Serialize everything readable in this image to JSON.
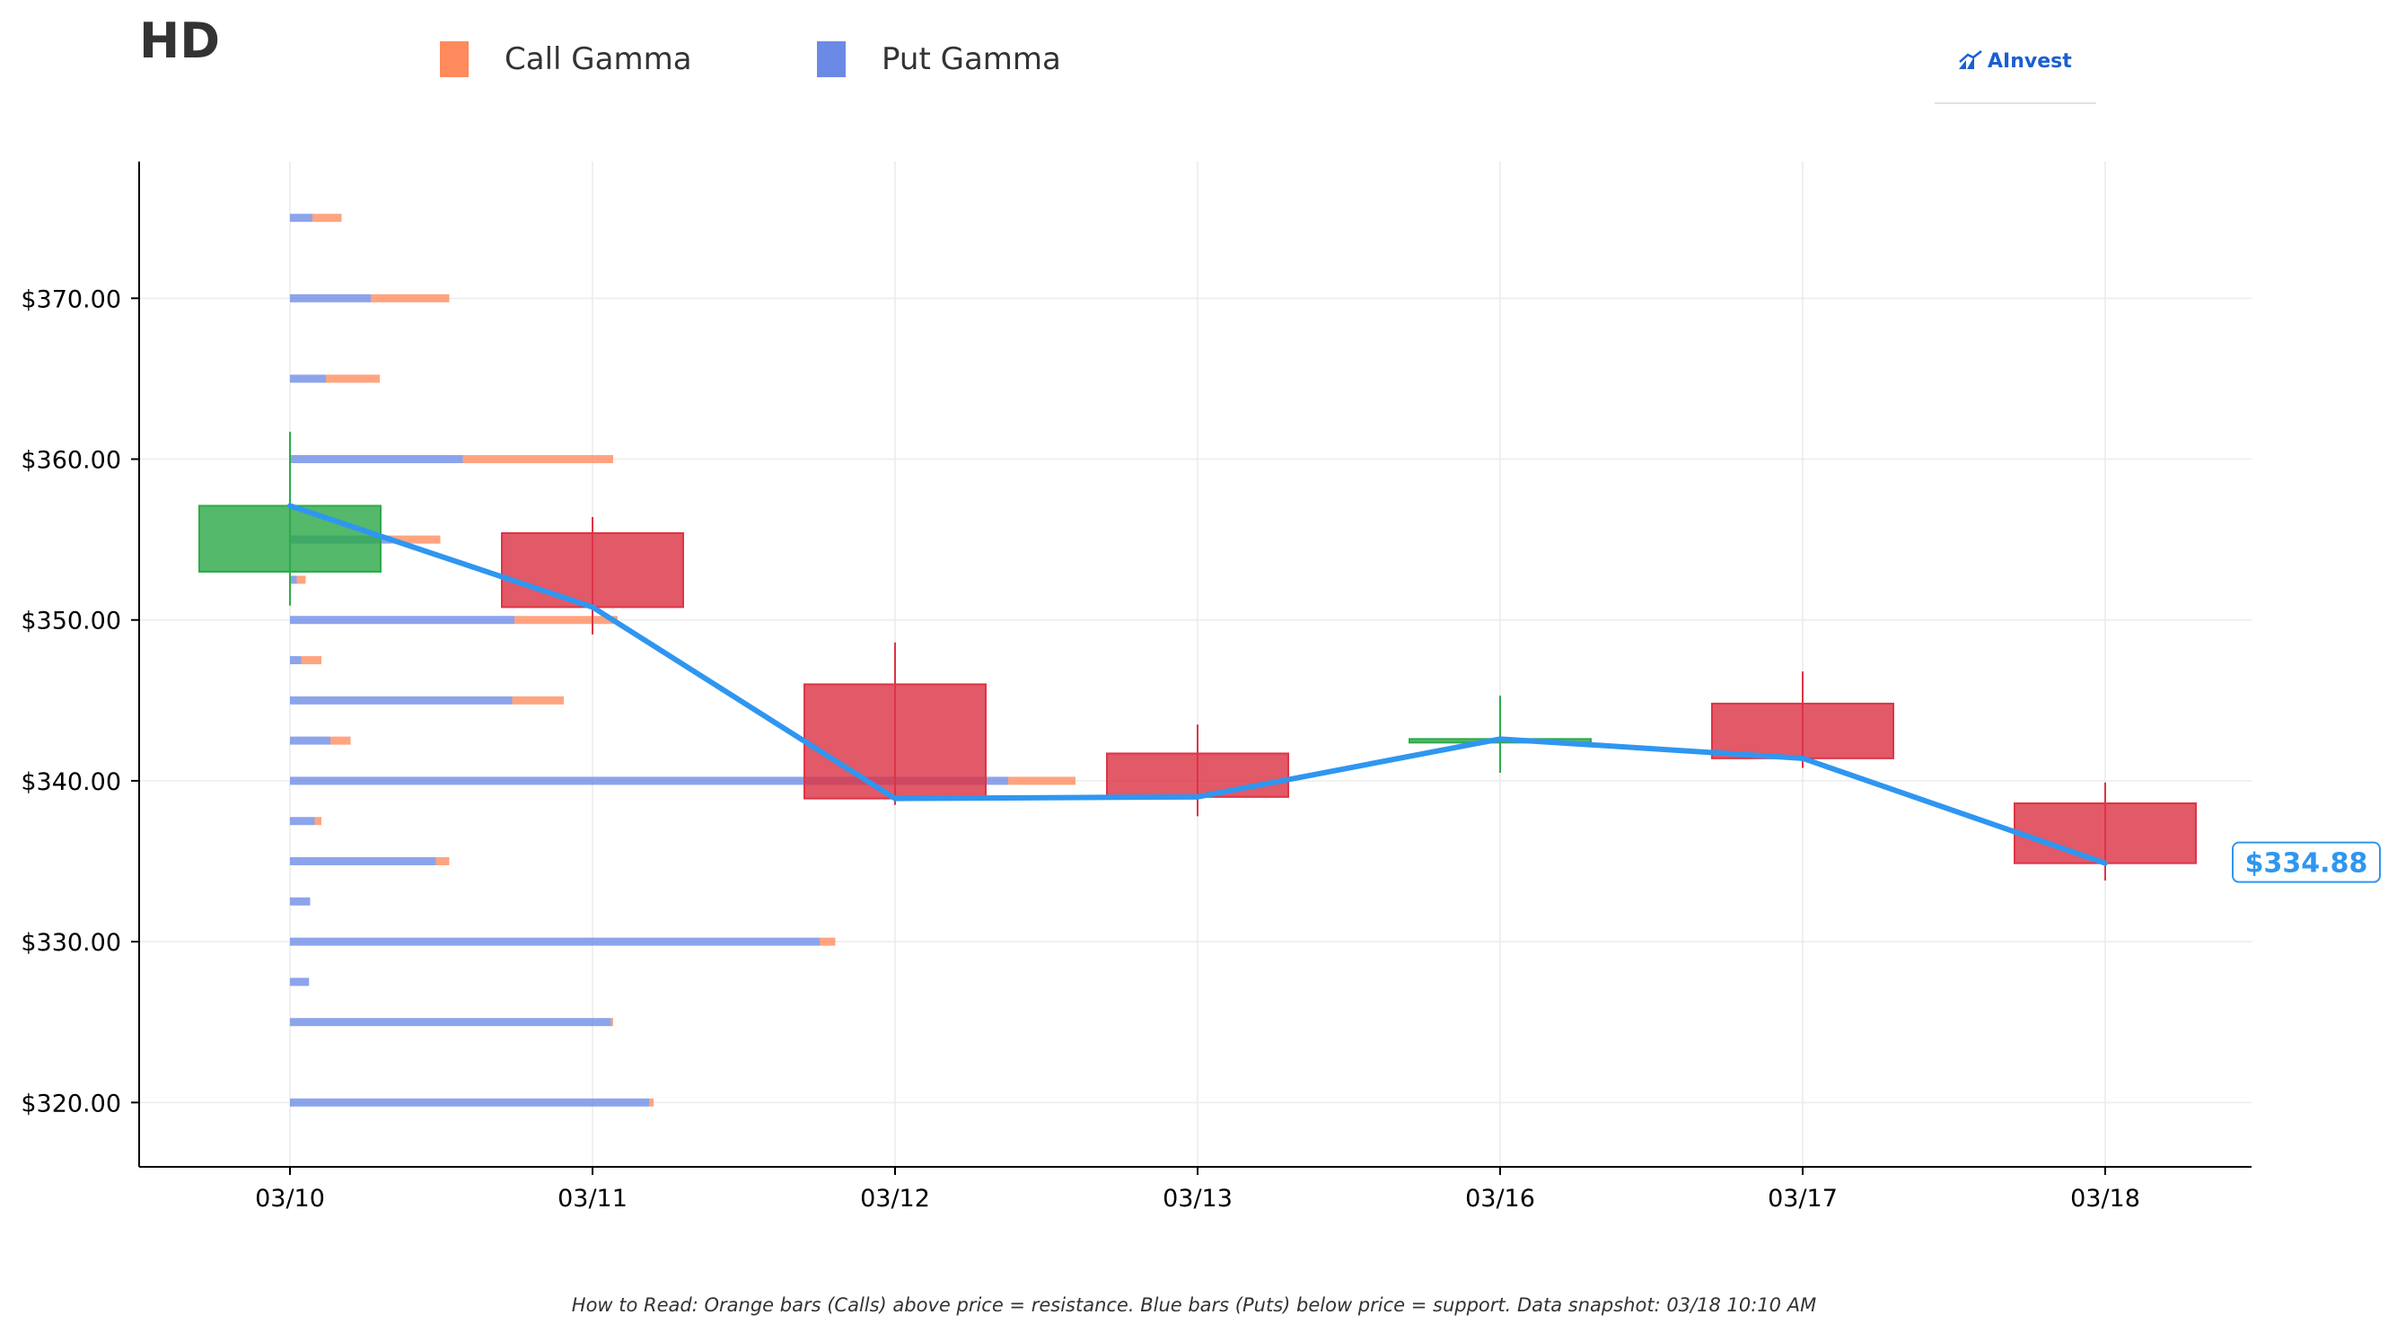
{
  "header": {
    "ticker": "HD",
    "logo_text": "AInvest"
  },
  "legend": [
    {
      "label": "Call Gamma",
      "color": "#ff8a5c"
    },
    {
      "label": "Put Gamma",
      "color": "#6b8ae6"
    }
  ],
  "footnote": "How to Read: Orange bars (Calls) above price = resistance. Blue bars (Puts) below price = support. Data snapshot: 03/18 10:10 AM",
  "colors": {
    "call": "#ff8a5c",
    "put": "#6b8ae6",
    "up": "#2eaa4a",
    "down": "#dc3545",
    "price_line": "#2f96f0",
    "axis": "#000000",
    "grid": "#ececec"
  },
  "chart_data": {
    "type": "candlestick",
    "categories": [
      "03/10",
      "03/11",
      "03/12",
      "03/13",
      "03/16",
      "03/17",
      "03/18"
    ],
    "ylim": [
      316,
      378.5
    ],
    "yticks": [
      320,
      330,
      340,
      350,
      360,
      370
    ],
    "ytick_labels": [
      "$320.00",
      "$330.00",
      "$340.00",
      "$350.00",
      "$360.00",
      "$370.00"
    ],
    "grid": true,
    "legend_position": "top",
    "last_price_label": "$334.88",
    "candles": [
      {
        "date": "03/10",
        "open": 353.0,
        "high": 361.7,
        "low": 350.9,
        "close": 357.1
      },
      {
        "date": "03/11",
        "open": 355.4,
        "high": 356.4,
        "low": 349.1,
        "close": 350.8
      },
      {
        "date": "03/12",
        "open": 346.0,
        "high": 348.6,
        "low": 338.5,
        "close": 338.9
      },
      {
        "date": "03/13",
        "open": 341.7,
        "high": 343.5,
        "low": 337.8,
        "close": 339.0
      },
      {
        "date": "03/16",
        "open": 342.4,
        "high": 345.3,
        "low": 340.5,
        "close": 342.6
      },
      {
        "date": "03/17",
        "open": 344.8,
        "high": 346.8,
        "low": 340.8,
        "close": 341.4
      },
      {
        "date": "03/18",
        "open": 338.6,
        "high": 339.9,
        "low": 333.8,
        "close": 334.88
      }
    ],
    "price_line": {
      "name": "Price",
      "values": [
        357.1,
        350.8,
        338.9,
        339.0,
        342.6,
        341.4,
        334.88
      ]
    },
    "gamma_bars": [
      {
        "strike": 375.0,
        "put": 1.0,
        "call": 1.3
      },
      {
        "strike": 370.0,
        "put": 3.6,
        "call": 3.5
      },
      {
        "strike": 365.0,
        "put": 1.6,
        "call": 2.4
      },
      {
        "strike": 360.0,
        "put": 7.7,
        "call": 6.7
      },
      {
        "strike": 355.0,
        "put": 4.5,
        "call": 2.2
      },
      {
        "strike": 352.5,
        "put": 0.3,
        "call": 0.4
      },
      {
        "strike": 350.0,
        "put": 10.0,
        "call": 4.6
      },
      {
        "strike": 347.5,
        "put": 0.5,
        "call": 0.9
      },
      {
        "strike": 345.0,
        "put": 9.9,
        "call": 2.3
      },
      {
        "strike": 342.5,
        "put": 1.8,
        "call": 0.9
      },
      {
        "strike": 340.0,
        "put": 32.0,
        "call": 3.0
      },
      {
        "strike": 337.5,
        "put": 1.1,
        "call": 0.3
      },
      {
        "strike": 335.0,
        "put": 6.5,
        "call": 0.6
      },
      {
        "strike": 332.5,
        "put": 0.9,
        "call": 0.0
      },
      {
        "strike": 330.0,
        "put": 23.6,
        "call": 0.7
      },
      {
        "strike": 327.5,
        "put": 0.85,
        "call": 0.0
      },
      {
        "strike": 325.0,
        "put": 14.3,
        "call": 0.1
      },
      {
        "strike": 320.0,
        "put": 16.0,
        "call": 0.2
      }
    ]
  }
}
